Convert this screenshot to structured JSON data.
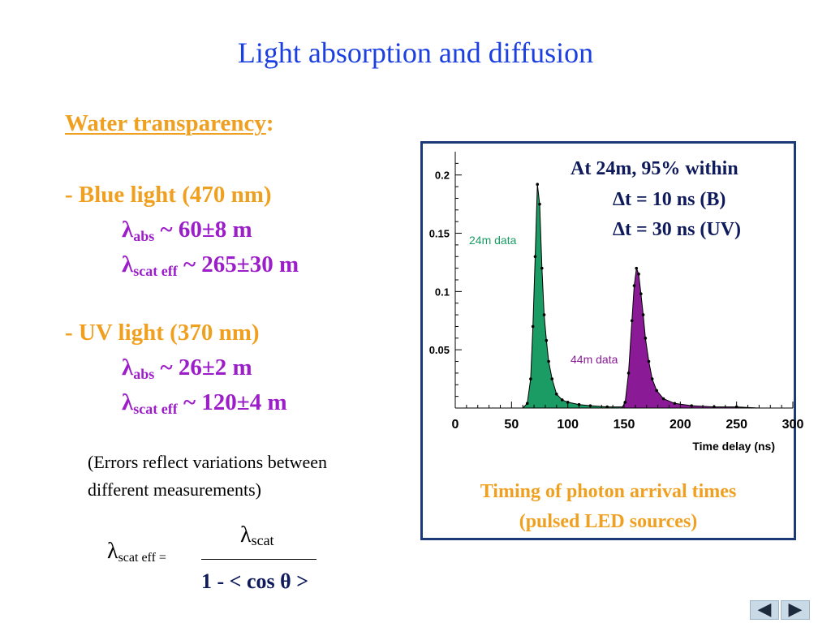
{
  "slide": {
    "title": "Light absorption and diffusion"
  },
  "left": {
    "heading": "Water transparency",
    "heading_colon": ":",
    "blue": {
      "label": "- Blue light (470 nm)",
      "abs_symbol": "λ",
      "abs_sub": "abs",
      "abs_value": " ~ 60±8 m",
      "scat_symbol": "λ",
      "scat_sub": "scat eff",
      "scat_value": " ~ 265±30 m"
    },
    "uv": {
      "label": "- UV light (370 nm)",
      "abs_symbol": "λ",
      "abs_sub": "abs",
      "abs_value": " ~ 26±2 m",
      "scat_symbol": "λ",
      "scat_sub": "scat eff",
      "scat_value": " ~ 120±4 m"
    },
    "note_line1": "(Errors reflect variations between",
    "note_line2": "different measurements)",
    "definition": {
      "lhs_symbol": "λ",
      "lhs_sub": "scat eff =",
      "num_symbol": "λ",
      "num_sub": "scat",
      "denominator": "1 - < cos θ >"
    }
  },
  "plot_annotation": {
    "line1": "At 24m, 95% within",
    "line2": "Δt = 10 ns (B)",
    "line3": "Δt = 30 ns (UV)"
  },
  "plot_caption": {
    "line1": "Timing of photon arrival times",
    "line2": "(pulsed LED sources)"
  },
  "chart_data": {
    "type": "area",
    "title": "",
    "xlabel": "Time delay (ns)",
    "ylabel": "",
    "xlim": [
      0,
      300
    ],
    "ylim": [
      0,
      0.22
    ],
    "x_ticks": [
      "0",
      "50",
      "100",
      "150",
      "200",
      "250",
      "300"
    ],
    "y_ticks": [
      "0.05",
      "0.1",
      "0.15",
      "0.2"
    ],
    "x_tick_values": [
      0,
      50,
      100,
      150,
      200,
      250,
      300
    ],
    "y_tick_values": [
      0.05,
      0.1,
      0.15,
      0.2
    ],
    "grid": false,
    "series": [
      {
        "name": "24m data",
        "color": "#1a9c64",
        "points": [
          [
            60,
            0.0
          ],
          [
            64,
            0.004
          ],
          [
            67,
            0.025
          ],
          [
            69,
            0.07
          ],
          [
            71,
            0.13
          ],
          [
            73,
            0.192
          ],
          [
            75,
            0.175
          ],
          [
            77,
            0.12
          ],
          [
            79,
            0.08
          ],
          [
            81,
            0.058
          ],
          [
            83,
            0.04
          ],
          [
            86,
            0.025
          ],
          [
            90,
            0.012
          ],
          [
            95,
            0.007
          ],
          [
            100,
            0.005
          ],
          [
            110,
            0.003
          ],
          [
            120,
            0.002
          ],
          [
            135,
            0.001
          ],
          [
            150,
            0.001
          ],
          [
            160,
            0.001
          ],
          [
            170,
            0.0
          ]
        ]
      },
      {
        "name": "44m data",
        "color": "#8a1a96",
        "points": [
          [
            148,
            0.0
          ],
          [
            151,
            0.005
          ],
          [
            154,
            0.03
          ],
          [
            157,
            0.075
          ],
          [
            159,
            0.105
          ],
          [
            161,
            0.12
          ],
          [
            163,
            0.115
          ],
          [
            165,
            0.098
          ],
          [
            167,
            0.08
          ],
          [
            169,
            0.06
          ],
          [
            172,
            0.04
          ],
          [
            175,
            0.025
          ],
          [
            179,
            0.015
          ],
          [
            185,
            0.008
          ],
          [
            195,
            0.004
          ],
          [
            210,
            0.002
          ],
          [
            230,
            0.001
          ],
          [
            250,
            0.001
          ],
          [
            270,
            0.0
          ],
          [
            290,
            0.0
          ],
          [
            300,
            0.0
          ]
        ]
      }
    ]
  }
}
